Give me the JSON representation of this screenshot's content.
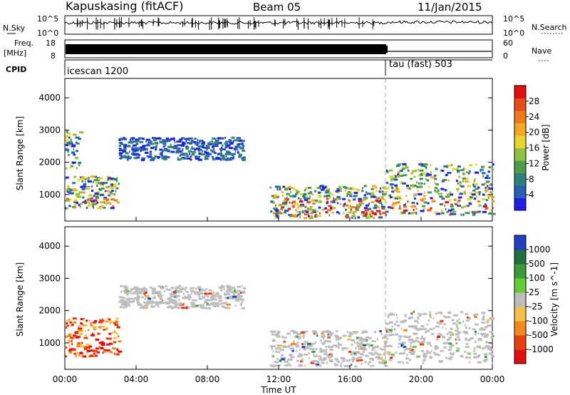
{
  "header": {
    "station": "Kapuskasing (fitACF)",
    "beam": "Beam 05",
    "date": "11/Jan/2015"
  },
  "panels": {
    "nsky_label": "N.Sky",
    "nsky_ticks": [
      "10^5",
      "10^0"
    ],
    "nsearch_label": "N.Search",
    "nsearch_ticks": [
      "10^5",
      "10^0"
    ],
    "freq_label": "Freq.",
    "freq_unit": "[MHz]",
    "freq_ticks": [
      "18",
      "8"
    ],
    "nave_label": "Nave",
    "nave_ticks": [
      "60",
      "0"
    ],
    "cpid_label": "CPID",
    "cpid_segments": [
      {
        "name": "icescan 1200",
        "start_hour": 0
      },
      {
        "name": "tau (fast) 503",
        "start_hour": 18
      }
    ]
  },
  "chart_data": [
    {
      "type": "heatmap",
      "title": "",
      "xlabel": "Time UT",
      "ylabel": "Slant Range [km]",
      "x_ticks": [
        "00:00",
        "04:00",
        "08:00",
        "12:00",
        "16:00",
        "20:00",
        "00:00"
      ],
      "xlim_hours": [
        0,
        24
      ],
      "y_ticks": [
        1000,
        2000,
        3000,
        4000
      ],
      "ylim_km": [
        180,
        4600
      ],
      "colorbar": {
        "label": "Power [dB]",
        "ticks": [
          "4",
          "8",
          "12",
          "16",
          "20",
          "24",
          "28"
        ],
        "range": [
          0,
          30
        ],
        "colors": [
          "#1f1fe6",
          "#2a5fb0",
          "#2f7f7a",
          "#4f9a4c",
          "#8fc23c",
          "#e6d52a",
          "#f5a623",
          "#f07a1a",
          "#e84c1a",
          "#e01010"
        ]
      },
      "scatter_regions_approx": [
        {
          "t_start": 0.0,
          "t_end": 3.0,
          "r_start": 600,
          "r_end": 1600,
          "level": "high"
        },
        {
          "t_start": 0.0,
          "t_end": 0.8,
          "r_start": 1800,
          "r_end": 3000,
          "level": "medium"
        },
        {
          "t_start": 3.0,
          "t_end": 10.0,
          "r_start": 2100,
          "r_end": 2800,
          "level": "low"
        },
        {
          "t_start": 11.5,
          "t_end": 18.0,
          "r_start": 300,
          "r_end": 1300,
          "level": "high"
        },
        {
          "t_start": 18.0,
          "t_end": 24.0,
          "r_start": 400,
          "r_end": 2000,
          "level": "high"
        }
      ]
    },
    {
      "type": "heatmap",
      "title": "",
      "xlabel": "Time UT",
      "ylabel": "Slant Range [km]",
      "x_ticks": [
        "00:00",
        "04:00",
        "08:00",
        "12:00",
        "16:00",
        "20:00",
        "00:00"
      ],
      "xlim_hours": [
        0,
        24
      ],
      "y_ticks": [
        1000,
        2000,
        3000,
        4000
      ],
      "ylim_km": [
        180,
        4600
      ],
      "colorbar": {
        "label": "Velocity [m s^-1]",
        "ticks": [
          "1000",
          "500",
          "100",
          "25",
          "-25",
          "-100",
          "-500",
          "-1000"
        ],
        "colors": [
          "#2040c0",
          "#1f6f3f",
          "#3c9a3c",
          "#66cc33",
          "#bdbdbd",
          "#f5c04a",
          "#f08a1a",
          "#e84010",
          "#e01010"
        ]
      },
      "scatter_regions_approx": [
        {
          "t_start": 0.0,
          "t_end": 3.0,
          "r_start": 600,
          "r_end": 1800,
          "level": "negative"
        },
        {
          "t_start": 3.0,
          "t_end": 10.0,
          "r_start": 2100,
          "r_end": 2800,
          "level": "ground"
        },
        {
          "t_start": 11.5,
          "t_end": 18.0,
          "r_start": 300,
          "r_end": 1400,
          "level": "ground"
        },
        {
          "t_start": 18.0,
          "t_end": 24.0,
          "r_start": 400,
          "r_end": 2000,
          "level": "ground"
        }
      ]
    }
  ]
}
